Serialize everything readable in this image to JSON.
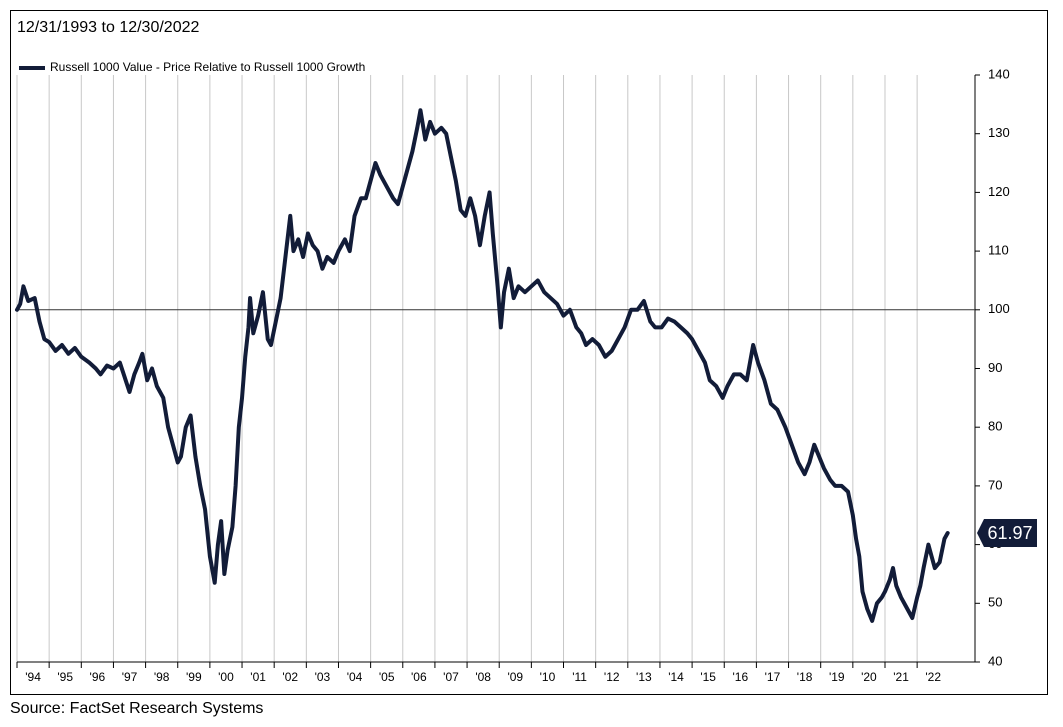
{
  "chart_data": {
    "type": "line",
    "title": "12/31/1993 to 12/30/2022",
    "source": "Source:  FactSet Research Systems",
    "series": [
      {
        "name": "Russell 1000 Value - Price Relative to Russell 1000 Growth",
        "color": "#121c38",
        "values": [
          100,
          101,
          104,
          101.5,
          102,
          98,
          95,
          94.5,
          93,
          94,
          92.5,
          93.5,
          92,
          91,
          90,
          89,
          90.5,
          90,
          91,
          88.5,
          86,
          89,
          91,
          92.5,
          88,
          90,
          87,
          85,
          80,
          77,
          74,
          75,
          80,
          82,
          75,
          70,
          66,
          58,
          55,
          53.5,
          60,
          64,
          55,
          59,
          63,
          70,
          80,
          85,
          92,
          97,
          102,
          96,
          99,
          103,
          95,
          94,
          98,
          102,
          109,
          116,
          110,
          112,
          109,
          113,
          111,
          110,
          107,
          109,
          108,
          110,
          112,
          110,
          116,
          119,
          119,
          122,
          125,
          123,
          121,
          119,
          118,
          121,
          124,
          127,
          131,
          134,
          129,
          132,
          130,
          131,
          130,
          126,
          122,
          117,
          116,
          119,
          116,
          111,
          116,
          120,
          113,
          104,
          97,
          103,
          107,
          102,
          104,
          103,
          104,
          105,
          103,
          102,
          101,
          99,
          100,
          97,
          96,
          94,
          95,
          94,
          92,
          93,
          95,
          97,
          100,
          100,
          101.5,
          98,
          97,
          97,
          98.5,
          98,
          97,
          96,
          95,
          93,
          91,
          88,
          87,
          85,
          87,
          89,
          89,
          88,
          94,
          91,
          88,
          84,
          83,
          80,
          77,
          74,
          72,
          74,
          77,
          75,
          73,
          71,
          70,
          70,
          69,
          65,
          61,
          58,
          52,
          49,
          47,
          50,
          51,
          52,
          54,
          56,
          53,
          51,
          49.5,
          47.5,
          51,
          53,
          56,
          60,
          58,
          56,
          57,
          61,
          61.97
        ]
      }
    ],
    "x": [
      1994.0,
      1994.1,
      1994.2,
      1994.35,
      1994.55,
      1994.7,
      1994.85,
      1995.0,
      1995.2,
      1995.4,
      1995.6,
      1995.8,
      1996.0,
      1996.25,
      1996.45,
      1996.6,
      1996.8,
      1997.0,
      1997.2,
      1997.35,
      1997.5,
      1997.65,
      1997.8,
      1997.9,
      1998.05,
      1998.2,
      1998.35,
      1998.55,
      1998.7,
      1998.85,
      1999.0,
      1999.1,
      1999.25,
      1999.4,
      1999.55,
      1999.7,
      1999.85,
      2000.0,
      2000.1,
      2000.15,
      2000.25,
      2000.35,
      2000.45,
      2000.55,
      2000.7,
      2000.8,
      2000.9,
      2001.0,
      2001.1,
      2001.2,
      2001.25,
      2001.35,
      2001.5,
      2001.65,
      2001.8,
      2001.9,
      2002.05,
      2002.2,
      2002.35,
      2002.5,
      2002.6,
      2002.75,
      2002.9,
      2003.05,
      2003.2,
      2003.35,
      2003.5,
      2003.65,
      2003.85,
      2004.0,
      2004.2,
      2004.35,
      2004.5,
      2004.7,
      2004.85,
      2005.0,
      2005.15,
      2005.3,
      2005.5,
      2005.7,
      2005.85,
      2006.0,
      2006.15,
      2006.3,
      2006.45,
      2006.55,
      2006.7,
      2006.85,
      2007.0,
      2007.2,
      2007.35,
      2007.5,
      2007.65,
      2007.8,
      2007.95,
      2008.1,
      2008.25,
      2008.4,
      2008.55,
      2008.7,
      2008.8,
      2008.95,
      2009.05,
      2009.15,
      2009.3,
      2009.45,
      2009.6,
      2009.8,
      2010.0,
      2010.2,
      2010.4,
      2010.6,
      2010.8,
      2011.0,
      2011.2,
      2011.4,
      2011.55,
      2011.7,
      2011.9,
      2012.1,
      2012.3,
      2012.5,
      2012.7,
      2012.9,
      2013.1,
      2013.3,
      2013.5,
      2013.7,
      2013.85,
      2014.05,
      2014.25,
      2014.45,
      2014.65,
      2014.85,
      2015.0,
      2015.2,
      2015.4,
      2015.55,
      2015.75,
      2015.95,
      2016.1,
      2016.3,
      2016.5,
      2016.7,
      2016.9,
      2017.05,
      2017.25,
      2017.45,
      2017.65,
      2017.9,
      2018.1,
      2018.3,
      2018.5,
      2018.65,
      2018.8,
      2018.95,
      2019.1,
      2019.3,
      2019.45,
      2019.65,
      2019.85,
      2020.0,
      2020.1,
      2020.2,
      2020.3,
      2020.45,
      2020.6,
      2020.75,
      2020.9,
      2021.0,
      2021.15,
      2021.25,
      2021.35,
      2021.5,
      2021.65,
      2021.85,
      2022.0,
      2022.1,
      2022.2,
      2022.35,
      2022.45,
      2022.55,
      2022.7,
      2022.85,
      2022.95
    ],
    "xlim": [
      1994,
      2023.8
    ],
    "xticks": [
      {
        "value": 1994,
        "label": "'94"
      },
      {
        "value": 1995,
        "label": "'95"
      },
      {
        "value": 1996,
        "label": "'96"
      },
      {
        "value": 1997,
        "label": "'97"
      },
      {
        "value": 1998,
        "label": "'98"
      },
      {
        "value": 1999,
        "label": "'99"
      },
      {
        "value": 2000,
        "label": "'00"
      },
      {
        "value": 2001,
        "label": "'01"
      },
      {
        "value": 2002,
        "label": "'02"
      },
      {
        "value": 2003,
        "label": "'03"
      },
      {
        "value": 2004,
        "label": "'04"
      },
      {
        "value": 2005,
        "label": "'05"
      },
      {
        "value": 2006,
        "label": "'06"
      },
      {
        "value": 2007,
        "label": "'07"
      },
      {
        "value": 2008,
        "label": "'08"
      },
      {
        "value": 2009,
        "label": "'09"
      },
      {
        "value": 2010,
        "label": "'10"
      },
      {
        "value": 2011,
        "label": "'11"
      },
      {
        "value": 2012,
        "label": "'12"
      },
      {
        "value": 2013,
        "label": "'13"
      },
      {
        "value": 2014,
        "label": "'14"
      },
      {
        "value": 2015,
        "label": "'15"
      },
      {
        "value": 2016,
        "label": "'16"
      },
      {
        "value": 2017,
        "label": "'17"
      },
      {
        "value": 2018,
        "label": "'18"
      },
      {
        "value": 2019,
        "label": "'19"
      },
      {
        "value": 2020,
        "label": "'20"
      },
      {
        "value": 2021,
        "label": "'21"
      },
      {
        "value": 2022,
        "label": "'22"
      }
    ],
    "ylim": [
      40,
      140
    ],
    "yticks": [
      40,
      50,
      60,
      70,
      80,
      90,
      100,
      110,
      120,
      130,
      140
    ],
    "grid": true,
    "reference_line": 100,
    "annotations": [
      {
        "text": "61.97",
        "value": 61.97
      }
    ]
  }
}
